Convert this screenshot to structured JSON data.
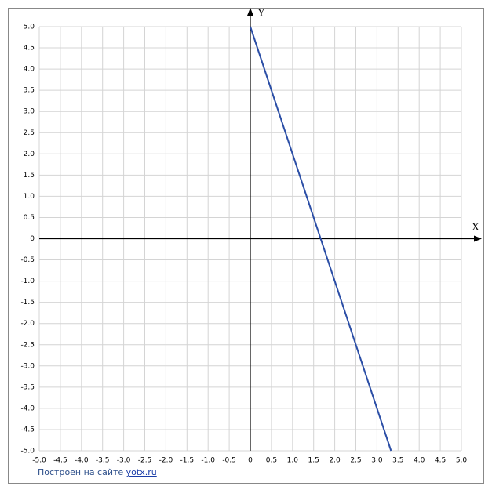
{
  "chart_data": {
    "type": "line",
    "x_label": "X",
    "y_label": "Y",
    "x": [
      0,
      3.333
    ],
    "values": [
      5,
      -5
    ],
    "color": "#2b4ea6",
    "xlim": [
      -5,
      5
    ],
    "ylim": [
      -5,
      5
    ],
    "xticks": [
      {
        "value": -5,
        "label": "-5.0"
      },
      -4.5,
      {
        "value": -4,
        "label": "-4.0"
      },
      -3.5,
      {
        "value": -3,
        "label": "-3.0"
      },
      -2.5,
      {
        "value": -2,
        "label": "-2.0"
      },
      -1.5,
      {
        "value": -1,
        "label": "-1.0"
      },
      -0.5,
      0,
      0.5,
      {
        "value": 1,
        "label": "1.0"
      },
      1.5,
      {
        "value": 2,
        "label": "2.0"
      },
      2.5,
      {
        "value": 3,
        "label": "3.0"
      },
      3.5,
      {
        "value": 4,
        "label": "4.0"
      },
      4.5,
      {
        "value": 5,
        "label": "5.0"
      }
    ],
    "yticks": [
      {
        "value": -5,
        "label": "-5.0"
      },
      -4.5,
      {
        "value": -4,
        "label": "-4.0"
      },
      -3.5,
      {
        "value": -3,
        "label": "-3.0"
      },
      -2.5,
      {
        "value": -2,
        "label": "-2.0"
      },
      -1.5,
      {
        "value": -1,
        "label": "-1.0"
      },
      -0.5,
      0,
      0.5,
      {
        "value": 1,
        "label": "1.0"
      },
      1.5,
      {
        "value": 2,
        "label": "2.0"
      },
      2.5,
      {
        "value": 3,
        "label": "3.0"
      },
      3.5,
      {
        "value": 4,
        "label": "4.0"
      },
      4.5,
      {
        "value": 5,
        "label": "5.0"
      }
    ],
    "grid": true
  },
  "footer": {
    "text": "Построен на сайте",
    "link": "yotx.ru"
  }
}
